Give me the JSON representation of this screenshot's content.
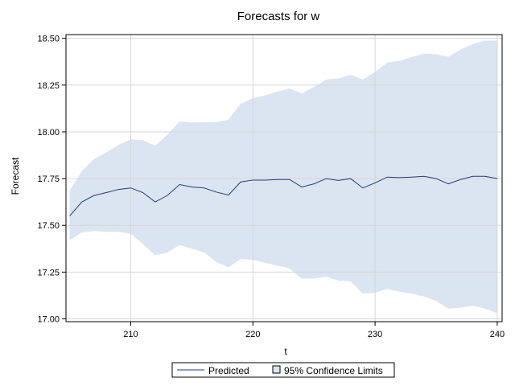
{
  "chart_data": {
    "type": "line",
    "title": "Forecasts for w",
    "xlabel": "t",
    "ylabel": "Forecast",
    "xlim": [
      204.7,
      240.4
    ],
    "ylim": [
      16.985,
      18.52
    ],
    "xticks": [
      210,
      220,
      230,
      240
    ],
    "xtick_labels": [
      "210",
      "220",
      "230",
      "240"
    ],
    "yticks": [
      17.0,
      17.25,
      17.5,
      17.75,
      18.0,
      18.25,
      18.5
    ],
    "ytick_labels": [
      "17.00",
      "17.25",
      "17.50",
      "17.75",
      "18.00",
      "18.25",
      "18.50"
    ],
    "grid": true,
    "x": [
      205,
      206,
      207,
      208,
      209,
      210,
      211,
      212,
      213,
      214,
      215,
      216,
      217,
      218,
      219,
      220,
      221,
      222,
      223,
      224,
      225,
      226,
      227,
      228,
      229,
      230,
      231,
      232,
      233,
      234,
      235,
      236,
      237,
      238,
      239,
      240
    ],
    "series": [
      {
        "name": "Predicted",
        "values": [
          17.55,
          17.625,
          17.66,
          17.675,
          17.692,
          17.7,
          17.675,
          17.625,
          17.66,
          17.718,
          17.705,
          17.7,
          17.678,
          17.662,
          17.732,
          17.742,
          17.742,
          17.745,
          17.745,
          17.705,
          17.722,
          17.75,
          17.74,
          17.75,
          17.7,
          17.727,
          17.758,
          17.755,
          17.758,
          17.762,
          17.75,
          17.722,
          17.745,
          17.762,
          17.762,
          17.75
        ]
      },
      {
        "name": "95% Confidence Limits",
        "lower": [
          17.42,
          17.462,
          17.47,
          17.465,
          17.465,
          17.455,
          17.4,
          17.34,
          17.355,
          17.395,
          17.375,
          17.355,
          17.305,
          17.275,
          17.32,
          17.315,
          17.3,
          17.285,
          17.27,
          17.215,
          17.215,
          17.225,
          17.205,
          17.2,
          17.135,
          17.14,
          17.16,
          17.145,
          17.135,
          17.12,
          17.095,
          17.055,
          17.06,
          17.07,
          17.055,
          17.03
        ],
        "upper": [
          17.685,
          17.79,
          17.855,
          17.89,
          17.93,
          17.96,
          17.955,
          17.925,
          17.985,
          18.055,
          18.05,
          18.052,
          18.052,
          18.065,
          18.15,
          18.18,
          18.195,
          18.215,
          18.232,
          18.205,
          18.24,
          18.28,
          18.285,
          18.305,
          18.28,
          18.32,
          18.37,
          18.38,
          18.4,
          18.418,
          18.415,
          18.402,
          18.44,
          18.47,
          18.488,
          18.488
        ]
      }
    ],
    "legend": {
      "position": "bottom",
      "predicted_label": "Predicted",
      "band_label": "95% Confidence Limits"
    },
    "colors": {
      "line": "#1f3b7a",
      "band": "#dbe4f1",
      "grid": "#d6d6d6",
      "frame": "#000000"
    }
  }
}
